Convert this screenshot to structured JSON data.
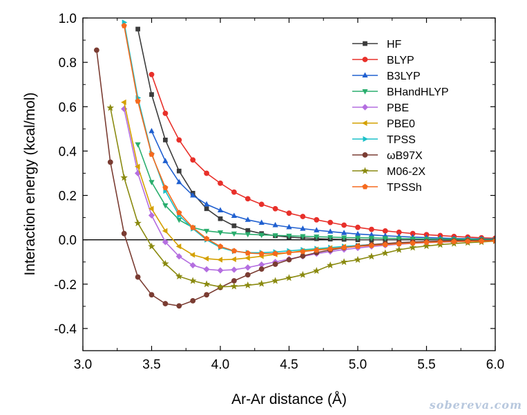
{
  "watermark": "sobereva.com",
  "chart_data": {
    "type": "line",
    "xlabel": "Ar-Ar distance (Å)",
    "ylabel": "Interaction energy (kcal/mol)",
    "xlim": [
      3.0,
      6.0
    ],
    "ylim": [
      -0.5,
      1.0
    ],
    "xticks": [
      3.0,
      3.5,
      4.0,
      4.5,
      5.0,
      5.5,
      6.0
    ],
    "xtick_labels": [
      "3.0",
      "3.5",
      "4.0",
      "4.5",
      "5.0",
      "5.5",
      "6.0"
    ],
    "yticks": [
      -0.4,
      -0.2,
      0.0,
      0.2,
      0.4,
      0.6,
      0.8,
      1.0
    ],
    "ytick_labels": [
      "-0.4",
      "-0.2",
      "0.0",
      "0.2",
      "0.4",
      "0.6",
      "0.8",
      "1.0"
    ],
    "zero_line": true,
    "grid": false,
    "legend_position": "top-right",
    "series": [
      {
        "name": "HF",
        "color": "#3c3c3c",
        "marker": "square",
        "x": [
          3.4,
          3.5,
          3.6,
          3.7,
          3.8,
          3.9,
          4.0,
          4.1,
          4.2,
          4.3,
          4.4,
          4.5,
          4.6,
          4.7,
          4.8,
          4.9,
          5.0,
          5.1,
          5.2,
          5.3,
          5.4,
          5.5,
          5.6,
          5.7,
          5.8,
          5.9,
          6.0
        ],
        "y": [
          0.95,
          0.655,
          0.45,
          0.31,
          0.21,
          0.14,
          0.095,
          0.063,
          0.042,
          0.028,
          0.018,
          0.012,
          0.008,
          0.005,
          0.003,
          0.002,
          0.0,
          0.0,
          0.0,
          0.0,
          0.0,
          0.0,
          0.0,
          0.0,
          0.0,
          0.0,
          0.0
        ]
      },
      {
        "name": "BLYP",
        "color": "#e8302a",
        "marker": "circle",
        "x": [
          3.5,
          3.6,
          3.7,
          3.8,
          3.9,
          4.0,
          4.1,
          4.2,
          4.3,
          4.4,
          4.5,
          4.6,
          4.7,
          4.8,
          4.9,
          5.0,
          5.1,
          5.2,
          5.3,
          5.4,
          5.5,
          5.6,
          5.7,
          5.8,
          5.9,
          6.0
        ],
        "y": [
          0.745,
          0.57,
          0.45,
          0.36,
          0.3,
          0.255,
          0.215,
          0.185,
          0.16,
          0.14,
          0.12,
          0.105,
          0.09,
          0.078,
          0.066,
          0.056,
          0.047,
          0.04,
          0.034,
          0.028,
          0.023,
          0.019,
          0.015,
          0.012,
          0.009,
          0.007
        ]
      },
      {
        "name": "B3LYP",
        "color": "#2060d0",
        "marker": "triangle-up",
        "x": [
          3.5,
          3.6,
          3.7,
          3.8,
          3.9,
          4.0,
          4.1,
          4.2,
          4.3,
          4.4,
          4.5,
          4.6,
          4.7,
          4.8,
          4.9,
          5.0,
          5.1,
          5.2,
          5.3,
          5.4,
          5.5,
          5.6,
          5.7,
          5.8,
          5.9,
          6.0
        ],
        "y": [
          0.49,
          0.355,
          0.26,
          0.2,
          0.16,
          0.133,
          0.108,
          0.09,
          0.077,
          0.066,
          0.057,
          0.05,
          0.043,
          0.037,
          0.031,
          0.026,
          0.022,
          0.018,
          0.015,
          0.012,
          0.01,
          0.008,
          0.006,
          0.005,
          0.004,
          0.003
        ]
      },
      {
        "name": "BHandHLYP",
        "color": "#2aae6e",
        "marker": "triangle-down",
        "x": [
          3.4,
          3.5,
          3.6,
          3.7,
          3.8,
          3.9,
          4.0,
          4.1,
          4.2,
          4.3,
          4.4,
          4.5,
          4.6,
          4.7,
          4.8,
          4.9,
          5.0,
          5.1,
          5.2,
          5.3,
          5.4,
          5.5,
          5.6,
          5.7,
          5.8,
          5.9,
          6.0
        ],
        "y": [
          0.43,
          0.26,
          0.155,
          0.09,
          0.055,
          0.04,
          0.033,
          0.028,
          0.025,
          0.022,
          0.02,
          0.018,
          0.016,
          0.014,
          0.012,
          0.01,
          0.009,
          0.008,
          0.007,
          0.006,
          0.005,
          0.004,
          0.003,
          0.003,
          0.002,
          0.002,
          0.001
        ]
      },
      {
        "name": "PBE",
        "color": "#b46ee0",
        "marker": "diamond",
        "x": [
          3.3,
          3.4,
          3.5,
          3.6,
          3.7,
          3.8,
          3.9,
          4.0,
          4.1,
          4.2,
          4.3,
          4.4,
          4.5,
          4.6,
          4.7,
          4.8,
          4.9,
          5.0,
          5.1,
          5.2,
          5.3,
          5.4,
          5.5,
          5.6,
          5.7,
          5.8,
          5.9,
          6.0
        ],
        "y": [
          0.59,
          0.3,
          0.11,
          -0.01,
          -0.075,
          -0.115,
          -0.133,
          -0.138,
          -0.135,
          -0.125,
          -0.112,
          -0.1,
          -0.087,
          -0.075,
          -0.063,
          -0.053,
          -0.044,
          -0.037,
          -0.03,
          -0.025,
          -0.02,
          -0.016,
          -0.013,
          -0.011,
          -0.009,
          -0.007,
          -0.005,
          -0.004
        ]
      },
      {
        "name": "PBE0",
        "color": "#d4a000",
        "marker": "triangle-left",
        "x": [
          3.3,
          3.4,
          3.5,
          3.6,
          3.7,
          3.8,
          3.9,
          4.0,
          4.1,
          4.2,
          4.3,
          4.4,
          4.5,
          4.6,
          4.7,
          4.8,
          4.9,
          5.0,
          5.1,
          5.2,
          5.3,
          5.4,
          5.5,
          5.6,
          5.7,
          5.8,
          5.9,
          6.0
        ],
        "y": [
          0.62,
          0.33,
          0.14,
          0.04,
          -0.03,
          -0.068,
          -0.085,
          -0.09,
          -0.088,
          -0.082,
          -0.074,
          -0.066,
          -0.058,
          -0.05,
          -0.043,
          -0.037,
          -0.031,
          -0.026,
          -0.022,
          -0.018,
          -0.015,
          -0.012,
          -0.01,
          -0.008,
          -0.006,
          -0.005,
          -0.004,
          -0.003
        ]
      },
      {
        "name": "TPSS",
        "color": "#1ac0c8",
        "marker": "triangle-right",
        "x": [
          3.3,
          3.4,
          3.5,
          3.6,
          3.7,
          3.8,
          3.9,
          4.0,
          4.1,
          4.2,
          4.3,
          4.4,
          4.5,
          4.6,
          4.7,
          4.8,
          4.9,
          5.0,
          5.1,
          5.2,
          5.3,
          5.4,
          5.5,
          5.6,
          5.7,
          5.8,
          5.9,
          6.0
        ],
        "y": [
          0.98,
          0.64,
          0.39,
          0.22,
          0.11,
          0.05,
          0.0,
          -0.035,
          -0.052,
          -0.058,
          -0.058,
          -0.055,
          -0.05,
          -0.045,
          -0.04,
          -0.035,
          -0.03,
          -0.026,
          -0.022,
          -0.019,
          -0.016,
          -0.013,
          -0.011,
          -0.009,
          -0.007,
          -0.006,
          -0.005,
          -0.004
        ]
      },
      {
        "name": "ωB97X",
        "color": "#7a3c32",
        "marker": "circle",
        "x": [
          3.1,
          3.2,
          3.3,
          3.4,
          3.5,
          3.6,
          3.7,
          3.8,
          3.9,
          4.0,
          4.1,
          4.2,
          4.3,
          4.4,
          4.5,
          4.6,
          4.7,
          4.8,
          4.9,
          5.0,
          5.1,
          5.2,
          5.3,
          5.4,
          5.5,
          5.6,
          5.7,
          5.8,
          5.9,
          6.0
        ],
        "y": [
          0.855,
          0.35,
          0.028,
          -0.168,
          -0.248,
          -0.288,
          -0.298,
          -0.275,
          -0.248,
          -0.215,
          -0.185,
          -0.158,
          -0.132,
          -0.11,
          -0.09,
          -0.073,
          -0.058,
          -0.046,
          -0.036,
          -0.028,
          -0.022,
          -0.017,
          -0.013,
          -0.01,
          -0.008,
          -0.006,
          -0.005,
          -0.004,
          -0.003,
          -0.002
        ]
      },
      {
        "name": "M06-2X",
        "color": "#8a8a10",
        "marker": "star",
        "x": [
          3.2,
          3.3,
          3.4,
          3.5,
          3.6,
          3.7,
          3.8,
          3.9,
          4.0,
          4.1,
          4.2,
          4.3,
          4.4,
          4.5,
          4.6,
          4.7,
          4.8,
          4.9,
          5.0,
          5.1,
          5.2,
          5.3,
          5.4,
          5.5,
          5.6,
          5.7,
          5.8,
          5.9,
          6.0
        ],
        "y": [
          0.595,
          0.28,
          0.075,
          -0.03,
          -0.108,
          -0.165,
          -0.185,
          -0.2,
          -0.212,
          -0.21,
          -0.205,
          -0.198,
          -0.185,
          -0.172,
          -0.158,
          -0.14,
          -0.115,
          -0.1,
          -0.09,
          -0.075,
          -0.06,
          -0.045,
          -0.035,
          -0.028,
          -0.022,
          -0.017,
          -0.013,
          -0.01,
          -0.006
        ]
      },
      {
        "name": "TPSSh",
        "color": "#f56a1e",
        "marker": "pentagon",
        "x": [
          3.3,
          3.4,
          3.5,
          3.6,
          3.7,
          3.8,
          3.9,
          4.0,
          4.1,
          4.2,
          4.3,
          4.4,
          4.5,
          4.6,
          4.7,
          4.8,
          4.9,
          5.0,
          5.1,
          5.2,
          5.3,
          5.4,
          5.5,
          5.6,
          5.7,
          5.8,
          5.9,
          6.0
        ],
        "y": [
          0.965,
          0.625,
          0.385,
          0.235,
          0.122,
          0.055,
          0.005,
          -0.03,
          -0.05,
          -0.06,
          -0.063,
          -0.062,
          -0.058,
          -0.053,
          -0.047,
          -0.041,
          -0.035,
          -0.03,
          -0.026,
          -0.022,
          -0.018,
          -0.015,
          -0.012,
          -0.01,
          -0.008,
          -0.007,
          -0.006,
          -0.005
        ]
      }
    ]
  }
}
